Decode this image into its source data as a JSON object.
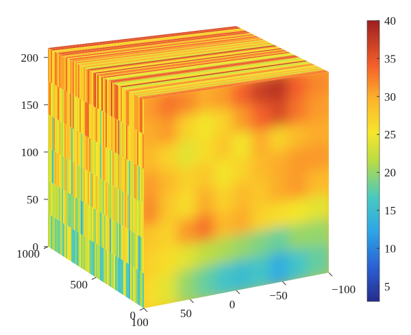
{
  "chart_data": {
    "type": "heatmap",
    "subtype": "3d-volume-slice-cube",
    "title": "",
    "z_axis": {
      "ticks": [
        0,
        50,
        100,
        150,
        200
      ],
      "tick_labels": [
        "0",
        "50",
        "100",
        "150",
        "200"
      ],
      "range": [
        0,
        210
      ]
    },
    "y_axis": {
      "ticks": [
        0,
        500,
        1000
      ],
      "tick_labels": [
        "0",
        "500",
        "1000"
      ],
      "range": [
        0,
        1000
      ]
    },
    "x_axis": {
      "ticks": [
        100,
        50,
        0,
        -50,
        -100
      ],
      "tick_labels": [
        "100",
        "50",
        "0",
        "−50",
        "−100"
      ],
      "range": [
        -100,
        100
      ]
    },
    "colorbar": {
      "range": [
        3,
        40
      ],
      "ticks": [
        5,
        10,
        15,
        20,
        25,
        30,
        35,
        40
      ],
      "tick_labels": [
        "5",
        "10",
        "15",
        "20",
        "25",
        "30",
        "35",
        "40"
      ],
      "colormap": "jet"
    },
    "front_face": {
      "description_grid_rows_top_to_bottom": 8,
      "values": [
        [
          31,
          33,
          32,
          30,
          31,
          34,
          37,
          38,
          34,
          32
        ],
        [
          30,
          31,
          27,
          25,
          27,
          31,
          34,
          36,
          33,
          31
        ],
        [
          29,
          27,
          24,
          26,
          28,
          25,
          30,
          27,
          29,
          30
        ],
        [
          31,
          29,
          27,
          28,
          25,
          27,
          29,
          30,
          31,
          31
        ],
        [
          32,
          28,
          26,
          30,
          27,
          29,
          28,
          30,
          31,
          29
        ],
        [
          28,
          27,
          31,
          33,
          29,
          30,
          27,
          26,
          25,
          24
        ],
        [
          27,
          26,
          24,
          22,
          21,
          20,
          19,
          18,
          20,
          20
        ],
        [
          26,
          24,
          20,
          18,
          16,
          15,
          16,
          13,
          16,
          18
        ]
      ]
    },
    "left_face": {
      "description": "streaky vertical bands, warm (25-33) toward the top, cooler (15-22) toward the bottom"
    }
  }
}
